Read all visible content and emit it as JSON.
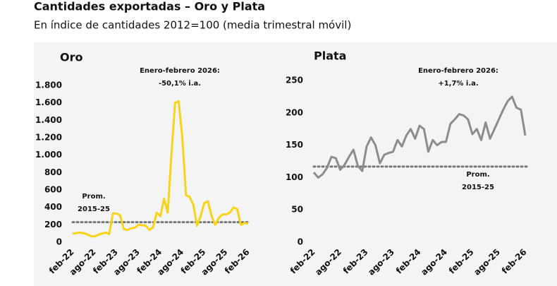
{
  "header": {
    "title": "Cantidades exportadas – Oro y Plata",
    "subtitle": "En índice de cantidades 2012=100 (media trimestral móvil)"
  },
  "chart_data": [
    {
      "type": "line",
      "title": "Oro",
      "annotation": [
        "Enero-febrero 2026:",
        "-50,1% i.a."
      ],
      "average": {
        "value": 230,
        "label": [
          "Prom.",
          "2015-25"
        ]
      },
      "categories": [
        "feb-22",
        null,
        null,
        null,
        null,
        null,
        "ago-22",
        null,
        null,
        null,
        null,
        null,
        "feb-23",
        null,
        null,
        null,
        null,
        null,
        "ago-23",
        null,
        null,
        null,
        null,
        null,
        "feb-24",
        null,
        null,
        null,
        null,
        null,
        "ago-24",
        null,
        null,
        null,
        null,
        null,
        "feb-25",
        null,
        null,
        null,
        null,
        null,
        "ago-25",
        null,
        null,
        null,
        null,
        null,
        "feb-26"
      ],
      "series": [
        {
          "name": "Oro",
          "color": "#f7d417",
          "values": [
            100,
            105,
            110,
            105,
            90,
            70,
            65,
            85,
            100,
            110,
            95,
            330,
            330,
            310,
            150,
            140,
            160,
            165,
            200,
            195,
            190,
            140,
            170,
            340,
            300,
            500,
            340,
            1000,
            1600,
            1620,
            1200,
            540,
            520,
            430,
            190,
            300,
            450,
            470,
            300,
            200,
            280,
            320,
            320,
            340,
            400,
            380,
            200,
            220,
            215
          ]
        }
      ],
      "ylim": [
        0,
        1800
      ],
      "yticks": [
        0,
        200,
        400,
        600,
        800,
        {
          "value": 1000,
          "label": "1.000"
        },
        {
          "value": 1200,
          "label": "1.200"
        },
        {
          "value": 1400,
          "label": "1.400"
        },
        {
          "value": 1600,
          "label": "1.600"
        },
        {
          "value": 1800,
          "label": "1.800"
        }
      ]
    },
    {
      "type": "line",
      "title": "Plata",
      "annotation": [
        "Enero-febrero 2026:",
        "+1,7% i.a."
      ],
      "average": {
        "value": 117,
        "label": [
          "Prom.",
          "2015-25"
        ]
      },
      "categories": [
        "feb-22",
        null,
        null,
        null,
        null,
        null,
        "ago-22",
        null,
        null,
        null,
        null,
        null,
        "feb-23",
        null,
        null,
        null,
        null,
        null,
        "ago-23",
        null,
        null,
        null,
        null,
        null,
        "feb-24",
        null,
        null,
        null,
        null,
        null,
        "ago-24",
        null,
        null,
        null,
        null,
        null,
        "feb-25",
        null,
        null,
        null,
        null,
        null,
        "ago-25",
        null,
        null,
        null,
        null,
        null,
        "feb-26"
      ],
      "series": [
        {
          "name": "Plata",
          "color": "#8c8c8c",
          "values": [
            108,
            100,
            105,
            115,
            132,
            130,
            112,
            120,
            132,
            143,
            118,
            110,
            148,
            162,
            150,
            122,
            135,
            138,
            140,
            158,
            148,
            165,
            175,
            160,
            180,
            175,
            140,
            158,
            150,
            155,
            155,
            183,
            190,
            198,
            196,
            190,
            167,
            175,
            158,
            185,
            160,
            175,
            190,
            205,
            218,
            225,
            208,
            205,
            165
          ]
        }
      ],
      "ylim": [
        0,
        250
      ],
      "yticks": [
        0,
        50,
        100,
        150,
        200,
        250
      ]
    }
  ]
}
